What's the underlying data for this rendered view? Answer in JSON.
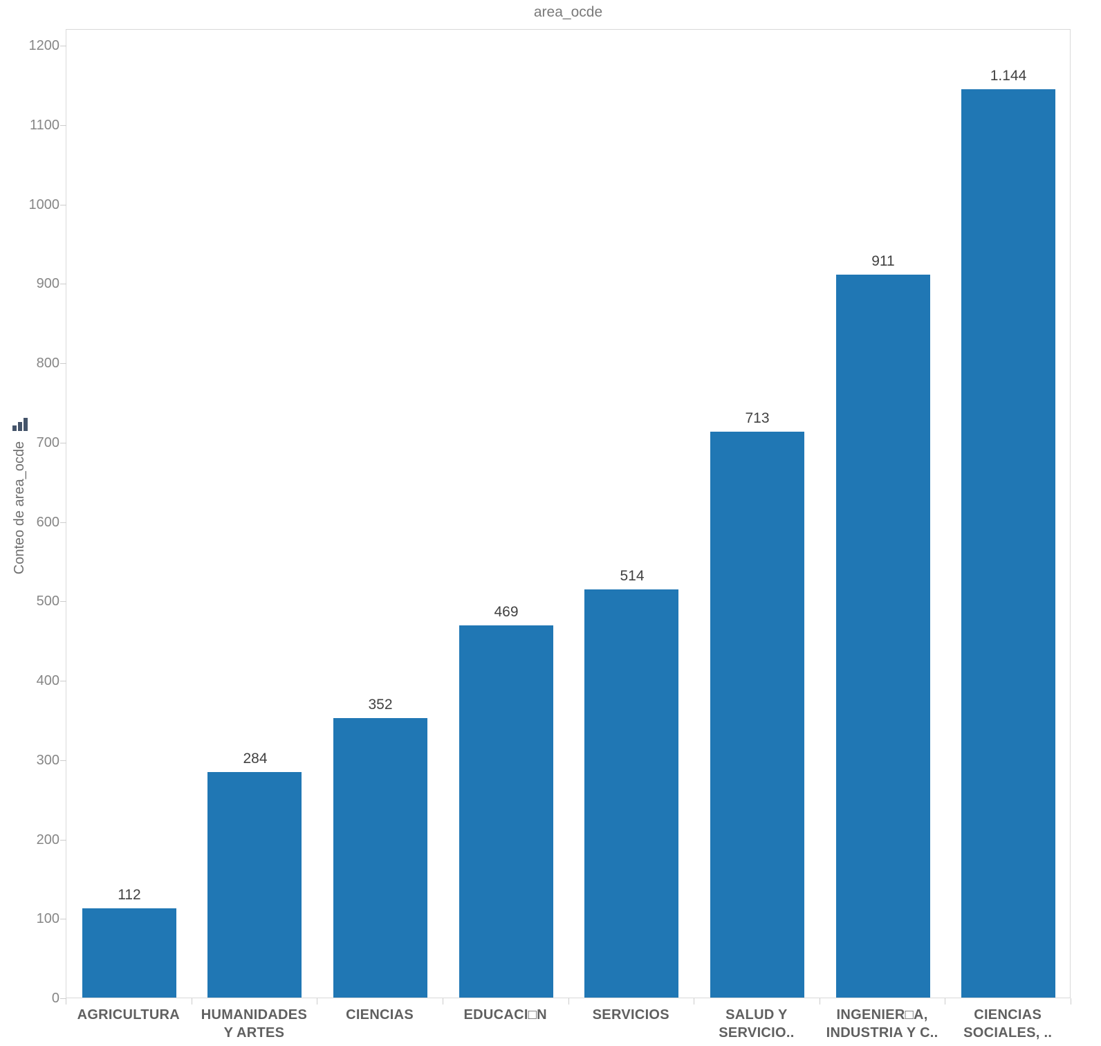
{
  "title": "area_ocde",
  "y_axis": {
    "label": "Conteo de area_ocde",
    "icon": "mini-bar-chart-icon",
    "tick_labels": [
      "0",
      "100",
      "200",
      "300",
      "400",
      "500",
      "600",
      "700",
      "800",
      "900",
      "1000",
      "1100",
      "1200"
    ]
  },
  "chart_data": {
    "type": "bar",
    "title": "area_ocde",
    "xlabel": "",
    "ylabel": "Conteo de area_ocde",
    "categories": [
      "AGRICULTURA",
      "HUMANIDADES Y ARTES",
      "CIENCIAS",
      "EDUCACI□N",
      "SERVICIOS",
      "SALUD Y SERVICIO..",
      "INGENIER□A, INDUSTRIA Y C..",
      "CIENCIAS SOCIALES, .."
    ],
    "values": [
      112,
      284,
      352,
      469,
      514,
      713,
      911,
      1144
    ],
    "value_labels": [
      "112",
      "284",
      "352",
      "469",
      "514",
      "713",
      "911",
      "1.144"
    ],
    "ylim": [
      0,
      1200
    ],
    "ytick_interval": 100,
    "grid": false,
    "legend_position": "none",
    "bar_color": "#2077b4"
  },
  "colors": {
    "bar": "#2077b4",
    "title_text": "#7a7a7a",
    "axis_tick_text": "#868686",
    "category_text": "#606060",
    "value_text": "#414141",
    "plot_border": "#d9d9d9",
    "icon": "#44546a",
    "background": "#ffffff"
  }
}
